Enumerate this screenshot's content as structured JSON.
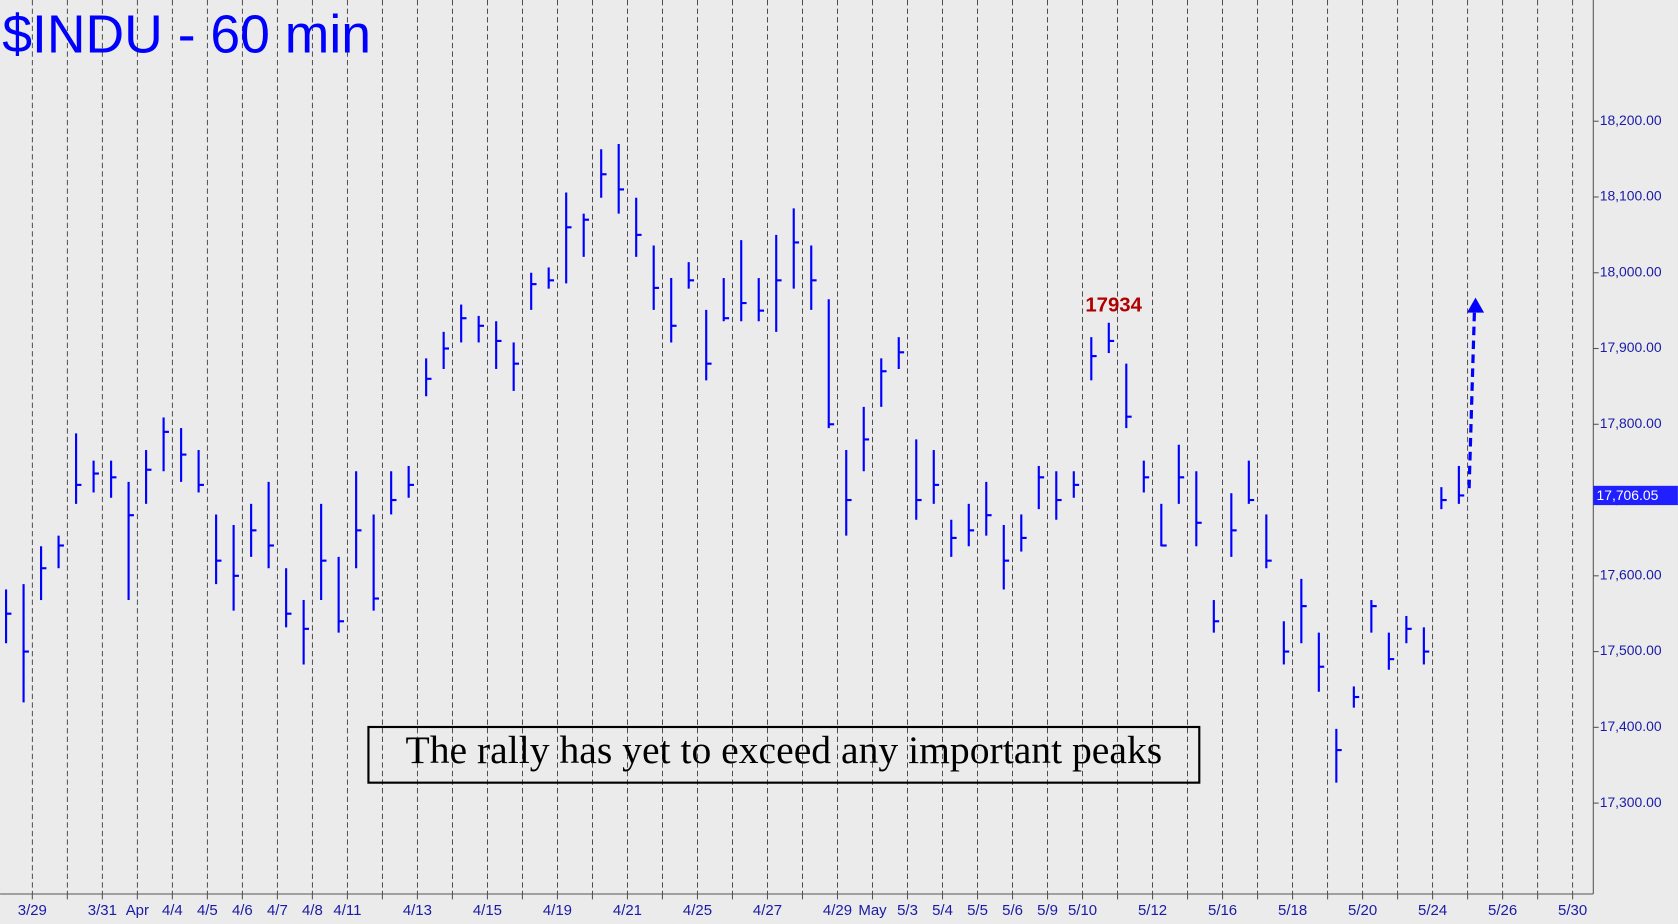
{
  "chart_data": {
    "type": "ohlc",
    "title": "$INDU - 60 min",
    "color": "#0000ff",
    "categories": [
      "3/29",
      null,
      "3/31",
      "Apr",
      "4/4",
      "4/5",
      "4/6",
      "4/7",
      "4/8",
      "4/11",
      null,
      "4/13",
      null,
      "4/15",
      null,
      "4/19",
      null,
      "4/21",
      null,
      "4/25",
      null,
      "4/27",
      null,
      "4/29",
      "May",
      "5/3",
      "5/4",
      "5/5",
      "5/6",
      "5/9",
      "5/10",
      null,
      "5/12",
      null,
      "5/16",
      null,
      "5/18",
      null,
      "5/20",
      null,
      "5/24",
      null,
      "5/26",
      null,
      "5/30"
    ],
    "xlim": [
      -0.92,
      44.59
    ],
    "x": [
      -0.75,
      -0.25,
      0.25,
      0.75,
      1.25,
      1.75,
      2.25,
      2.75,
      3.25,
      3.75,
      4.25,
      4.75,
      5.25,
      5.75,
      6.25,
      6.75,
      7.25,
      7.75,
      8.25,
      8.75,
      9.25,
      9.75,
      10.25,
      10.75,
      11.25,
      11.75,
      12.25,
      12.75,
      13.25,
      13.75,
      14.25,
      14.75,
      15.25,
      15.75,
      16.25,
      16.75,
      17.25,
      17.75,
      18.25,
      18.75,
      19.25,
      19.75,
      20.25,
      20.75,
      21.25,
      21.75,
      22.25,
      22.75,
      23.25,
      23.75,
      24.25,
      24.75,
      25.25,
      25.75,
      26.25,
      26.75,
      27.25,
      27.75,
      28.25,
      28.75,
      29.25,
      29.75,
      30.25,
      30.75,
      31.25,
      31.75,
      32.25,
      32.75,
      33.25,
      33.75,
      34.25,
      34.75,
      35.25,
      35.75,
      36.25,
      36.75,
      37.25,
      37.75,
      38.25,
      38.75,
      39.25,
      39.75,
      40.25,
      40.75
    ],
    "high": [
      17582,
      17589,
      17639,
      17653,
      17788,
      17752,
      17752,
      17724,
      17766,
      17809,
      17795,
      17766,
      17681,
      17667,
      17695,
      17724,
      17610,
      17568,
      17695,
      17625,
      17738,
      17681,
      17738,
      17745,
      17887,
      17922,
      17958,
      17943,
      17936,
      17908,
      18000,
      18007,
      18106,
      18078,
      18163,
      18170,
      18099,
      18036,
      17993,
      18014,
      17951,
      17993,
      18043,
      17993,
      18050,
      18085,
      18036,
      17965,
      17766,
      17823,
      17887,
      17915,
      17780,
      17766,
      17674,
      17695,
      17724,
      17667,
      17681,
      17745,
      17738,
      17738,
      17915,
      17934,
      17880,
      17752,
      17695,
      17773,
      17738,
      17568,
      17709,
      17752,
      17681,
      17540,
      17596,
      17525,
      17398,
      17454,
      17568,
      17525,
      17547,
      17532,
      17717,
      17745
    ],
    "low": [
      17511,
      17433,
      17568,
      17610,
      17695,
      17710,
      17703,
      17568,
      17695,
      17738,
      17724,
      17710,
      17589,
      17554,
      17625,
      17610,
      17532,
      17483,
      17568,
      17525,
      17610,
      17554,
      17681,
      17703,
      17837,
      17873,
      17908,
      17908,
      17873,
      17844,
      17951,
      17979,
      17986,
      18021,
      18099,
      18078,
      18021,
      17951,
      17908,
      17979,
      17858,
      17936,
      17936,
      17936,
      17922,
      17979,
      17951,
      17795,
      17653,
      17738,
      17823,
      17873,
      17674,
      17695,
      17625,
      17639,
      17653,
      17582,
      17632,
      17688,
      17674,
      17703,
      17858,
      17894,
      17795,
      17710,
      17639,
      17695,
      17639,
      17525,
      17625,
      17695,
      17610,
      17483,
      17511,
      17447,
      17327,
      17426,
      17525,
      17476,
      17511,
      17483,
      17688,
      17695
    ],
    "close": [
      17550,
      17500,
      17610,
      17640,
      17720,
      17735,
      17730,
      17680,
      17740,
      17790,
      17760,
      17720,
      17620,
      17600,
      17660,
      17640,
      17550,
      17530,
      17620,
      17540,
      17660,
      17570,
      17700,
      17720,
      17860,
      17900,
      17940,
      17930,
      17910,
      17880,
      17985,
      17990,
      18060,
      18070,
      18130,
      18110,
      18050,
      17980,
      17930,
      17990,
      17880,
      17940,
      17960,
      17950,
      17990,
      18040,
      17990,
      17800,
      17700,
      17780,
      17870,
      17895,
      17700,
      17720,
      17650,
      17660,
      17680,
      17620,
      17650,
      17730,
      17700,
      17720,
      17890,
      17910,
      17810,
      17730,
      17640,
      17730,
      17670,
      17540,
      17660,
      17700,
      17620,
      17500,
      17560,
      17480,
      17370,
      17440,
      17560,
      17490,
      17530,
      17500,
      17700,
      17706.05
    ],
    "ylim": [
      17180,
      18360
    ],
    "yticks": [
      {
        "value": 17300,
        "label": "17,300.00"
      },
      {
        "value": 17400,
        "label": "17,400.00"
      },
      {
        "value": 17500,
        "label": "17,500.00"
      },
      {
        "value": 17600,
        "label": "17,600.00"
      },
      {
        "value": 17700,
        "label": "17,700.00"
      },
      {
        "value": 17800,
        "label": "17,800.00"
      },
      {
        "value": 17900,
        "label": "17,900.00"
      },
      {
        "value": 18000,
        "label": "18,000.00"
      },
      {
        "value": 18100,
        "label": "18,100.00"
      },
      {
        "value": 18200,
        "label": "18,200.00"
      }
    ],
    "last_price": {
      "value": 17706.05,
      "label": "17,706.05"
    },
    "peak_label": "17934",
    "annotation": "The rally has yet to exceed any important peaks"
  }
}
